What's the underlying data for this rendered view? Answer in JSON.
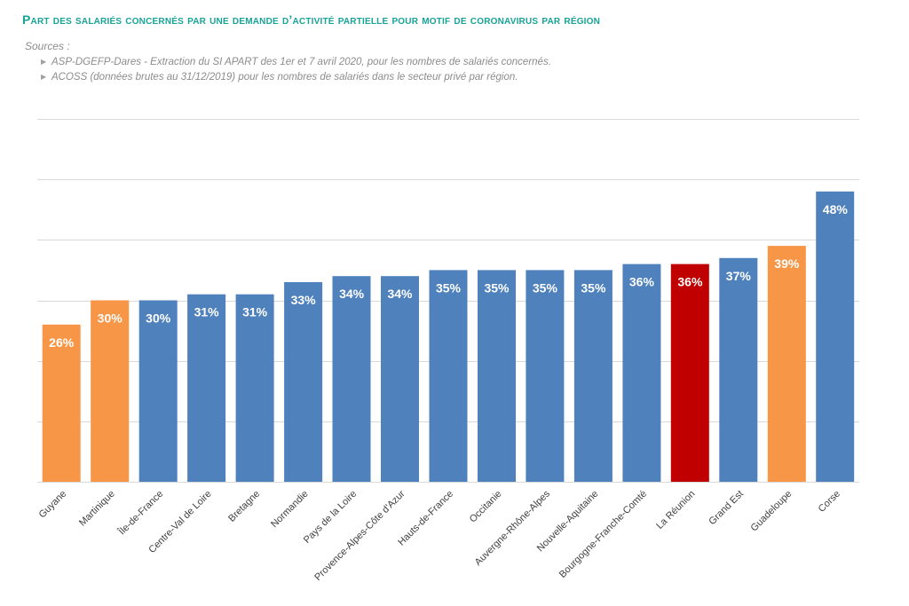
{
  "title": "Part des salariés concernés par une demande d’activité partielle pour motif de coronavirus par région",
  "sources": {
    "label": "Sources :",
    "items": [
      "ASP-DGEFP-Dares - Extraction du SI APART des 1er et 7 avril 2020, pour les nombres de salariés concernés.",
      "ACOSS (données brutes au 31/12/2019)  pour les nombres de salariés dans le secteur privé par région."
    ]
  },
  "colors": {
    "default": "#4f81bd",
    "overseas": "#f79646",
    "highlight": "#c00000",
    "grid": "#d9d9d9",
    "label": "#ffffff",
    "title": "#17a398"
  },
  "chart_data": {
    "type": "bar",
    "categories": [
      "Guyane",
      "Martinique",
      "Île-de-France",
      "Centre-Val de Loire",
      "Bretagne",
      "Normandie",
      "Pays de la Loire",
      "Provence-Alpes-Côte d'Azur",
      "Hauts-de-France",
      "Occitanie",
      "Auvergne-Rhône-Alpes",
      "Nouvelle-Aquitaine",
      "Bourgogne-Franche-Comté",
      "La Réunion",
      "Grand Est",
      "Guadeloupe",
      "Corse"
    ],
    "values": [
      26,
      30,
      30,
      31,
      31,
      33,
      34,
      34,
      35,
      35,
      35,
      35,
      36,
      36,
      37,
      39,
      48
    ],
    "value_labels": [
      "26%",
      "30%",
      "30%",
      "31%",
      "31%",
      "33%",
      "34%",
      "34%",
      "35%",
      "35%",
      "35%",
      "35%",
      "36%",
      "36%",
      "37%",
      "39%",
      "48%"
    ],
    "bar_colors": [
      "overseas",
      "overseas",
      "default",
      "default",
      "default",
      "default",
      "default",
      "default",
      "default",
      "default",
      "default",
      "default",
      "default",
      "highlight",
      "default",
      "overseas",
      "default"
    ],
    "ylim": [
      0,
      60
    ],
    "gridlines": [
      0,
      10,
      20,
      30,
      40,
      50,
      60
    ],
    "xlabel": "",
    "ylabel": "",
    "grid": true,
    "legend": "none"
  }
}
